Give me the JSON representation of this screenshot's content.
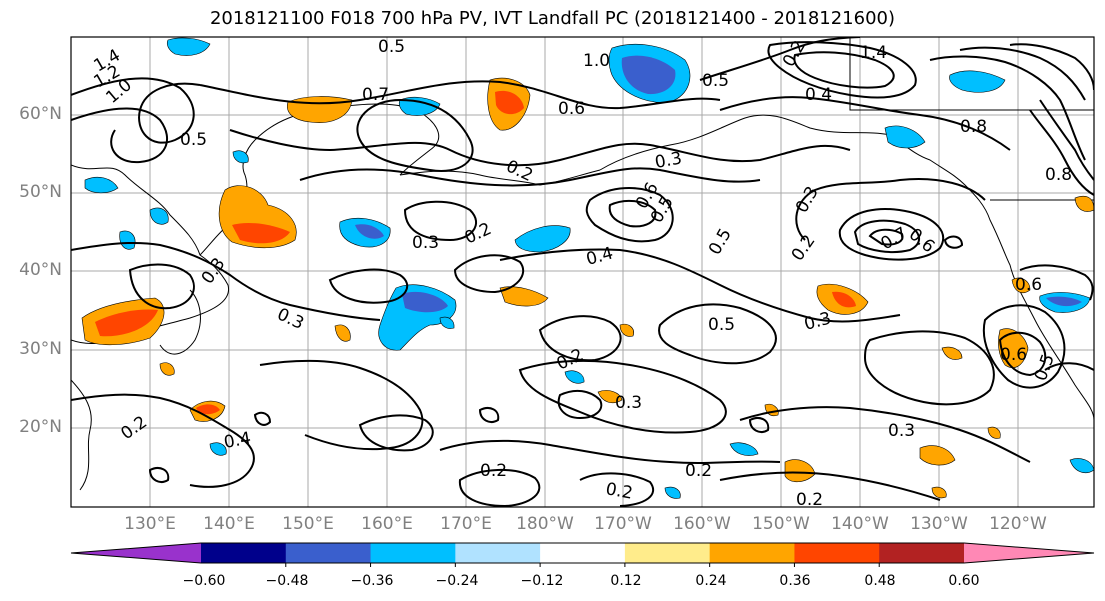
{
  "title": "2018121100 F018 700 hPa PV, IVT Landfall PC (2018121400 - 2018121600)",
  "map": {
    "lat_labels": [
      "60°N",
      "50°N",
      "40°N",
      "30°N",
      "20°N"
    ],
    "lon_labels": [
      "130°E",
      "140°E",
      "150°E",
      "160°E",
      "170°E",
      "180°W",
      "170°W",
      "160°W",
      "150°W",
      "140°W",
      "130°W",
      "120°W"
    ],
    "contour_labels": [
      "1.4",
      "1.2",
      "1.0",
      "0.5",
      "0.7",
      "0.5",
      "0.6",
      "1.0",
      "0.5",
      "0.4",
      "1.4",
      "0.2",
      "0.8",
      "0.8",
      "0.2",
      "0.3",
      "0.3",
      "0.2",
      "0.6",
      "0.5",
      "0.3",
      "0.7",
      "0.6",
      "0.4",
      "0.5",
      "0.2",
      "0.3",
      "0.3",
      "0.5",
      "0.2",
      "0.3",
      "0.6",
      "0.5",
      "0.3",
      "0.2",
      "0.2",
      "0.2",
      "0.3",
      "0.4",
      "0.2",
      "0.6",
      "0.2"
    ]
  },
  "colorbar": {
    "colors": [
      "#9932cc",
      "#00008b",
      "#3a5fcd",
      "#00bfff",
      "#b0e2ff",
      "#ffffff",
      "#ffec8b",
      "#ffa500",
      "#ff4500",
      "#b22222",
      "#ff88b5"
    ],
    "labels": [
      "−0.60",
      "−0.48",
      "−0.36",
      "−0.24",
      "−0.12",
      "0.12",
      "0.24",
      "0.36",
      "0.48",
      "0.60"
    ]
  }
}
